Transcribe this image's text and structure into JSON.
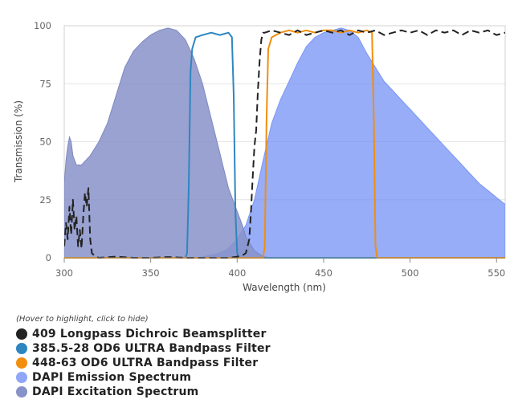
{
  "legend": {
    "hint": "(Hover to highlight, click to hide)"
  },
  "chart_data": {
    "type": "area",
    "title": "",
    "xlabel": "Wavelength (nm)",
    "ylabel": "Transmission (%)",
    "xlim": [
      300,
      555
    ],
    "ylim": [
      0,
      100
    ],
    "x_ticks": [
      300,
      350,
      400,
      450,
      500,
      550
    ],
    "y_ticks": [
      0,
      25,
      50,
      75,
      100
    ],
    "grid": "horizontal",
    "legend_position": "bottom-left",
    "series": [
      {
        "name": "409 Longpass Dichroic Beamsplitter",
        "color": "#222222",
        "style": "dashed",
        "points": [
          [
            300,
            5
          ],
          [
            301,
            15
          ],
          [
            302,
            8
          ],
          [
            303,
            22
          ],
          [
            304,
            10
          ],
          [
            305,
            25
          ],
          [
            306,
            12
          ],
          [
            307,
            18
          ],
          [
            308,
            5
          ],
          [
            309,
            12
          ],
          [
            310,
            4
          ],
          [
            311,
            18
          ],
          [
            312,
            28
          ],
          [
            313,
            22
          ],
          [
            314,
            30
          ],
          [
            315,
            8
          ],
          [
            316,
            2
          ],
          [
            318,
            0.5
          ],
          [
            320,
            0
          ],
          [
            330,
            0.5
          ],
          [
            340,
            0
          ],
          [
            350,
            0
          ],
          [
            360,
            0.3
          ],
          [
            370,
            0
          ],
          [
            380,
            0
          ],
          [
            390,
            0
          ],
          [
            395,
            0
          ],
          [
            400,
            0.5
          ],
          [
            403,
            1
          ],
          [
            405,
            2
          ],
          [
            407,
            8
          ],
          [
            408,
            20
          ],
          [
            409,
            35
          ],
          [
            410,
            48
          ],
          [
            411,
            55
          ],
          [
            412,
            72
          ],
          [
            413,
            85
          ],
          [
            414,
            94
          ],
          [
            415,
            97
          ],
          [
            416,
            97
          ],
          [
            420,
            98
          ],
          [
            425,
            97
          ],
          [
            430,
            96
          ],
          [
            435,
            98
          ],
          [
            440,
            96
          ],
          [
            445,
            97
          ],
          [
            450,
            98
          ],
          [
            455,
            97
          ],
          [
            460,
            98
          ],
          [
            465,
            96
          ],
          [
            470,
            98
          ],
          [
            475,
            97
          ],
          [
            480,
            98
          ],
          [
            485,
            96
          ],
          [
            490,
            97
          ],
          [
            495,
            98
          ],
          [
            500,
            97
          ],
          [
            505,
            98
          ],
          [
            510,
            96
          ],
          [
            515,
            98
          ],
          [
            520,
            97
          ],
          [
            525,
            98
          ],
          [
            530,
            96
          ],
          [
            535,
            98
          ],
          [
            540,
            97
          ],
          [
            545,
            98
          ],
          [
            550,
            96
          ],
          [
            555,
            97
          ]
        ]
      },
      {
        "name": "385.5-28 OD6 ULTRA Bandpass Filter",
        "color": "#2e86c1",
        "style": "solid",
        "points": [
          [
            300,
            0
          ],
          [
            370,
            0
          ],
          [
            371,
            2
          ],
          [
            372,
            30
          ],
          [
            373,
            80
          ],
          [
            374,
            90
          ],
          [
            376,
            95
          ],
          [
            380,
            96
          ],
          [
            385,
            97
          ],
          [
            390,
            96
          ],
          [
            395,
            97
          ],
          [
            397,
            95
          ],
          [
            398,
            70
          ],
          [
            399,
            20
          ],
          [
            400,
            2
          ],
          [
            401,
            0
          ],
          [
            555,
            0
          ]
        ]
      },
      {
        "name": "448-63 OD6 ULTRA Bandpass Filter",
        "color": "#f28e0c",
        "style": "solid",
        "points": [
          [
            300,
            0
          ],
          [
            415,
            0
          ],
          [
            416,
            5
          ],
          [
            417,
            60
          ],
          [
            418,
            90
          ],
          [
            420,
            95
          ],
          [
            425,
            97
          ],
          [
            430,
            98
          ],
          [
            435,
            97
          ],
          [
            440,
            98
          ],
          [
            445,
            97
          ],
          [
            450,
            98
          ],
          [
            455,
            98
          ],
          [
            460,
            97
          ],
          [
            465,
            98
          ],
          [
            470,
            97
          ],
          [
            475,
            98
          ],
          [
            478,
            97
          ],
          [
            479,
            60
          ],
          [
            480,
            5
          ],
          [
            481,
            0
          ],
          [
            555,
            0
          ]
        ]
      },
      {
        "name": "DAPI Emission Spectrum",
        "color": "#6f8ef5",
        "style": "filled",
        "points": [
          [
            370,
            0
          ],
          [
            380,
            0.3
          ],
          [
            390,
            2
          ],
          [
            395,
            4
          ],
          [
            400,
            8
          ],
          [
            405,
            14
          ],
          [
            410,
            25
          ],
          [
            415,
            42
          ],
          [
            420,
            58
          ],
          [
            425,
            68
          ],
          [
            430,
            76
          ],
          [
            435,
            84
          ],
          [
            440,
            91
          ],
          [
            445,
            95
          ],
          [
            450,
            97
          ],
          [
            455,
            98
          ],
          [
            460,
            99
          ],
          [
            465,
            98
          ],
          [
            470,
            95
          ],
          [
            475,
            88
          ],
          [
            480,
            82
          ],
          [
            485,
            76
          ],
          [
            490,
            72
          ],
          [
            495,
            68
          ],
          [
            500,
            64
          ],
          [
            505,
            60
          ],
          [
            510,
            56
          ],
          [
            515,
            52
          ],
          [
            520,
            48
          ],
          [
            525,
            44
          ],
          [
            530,
            40
          ],
          [
            535,
            36
          ],
          [
            540,
            32
          ],
          [
            545,
            29
          ],
          [
            550,
            26
          ],
          [
            555,
            23
          ]
        ]
      },
      {
        "name": "DAPI Excitation Spectrum",
        "color": "#8792c8",
        "style": "filled",
        "points": [
          [
            300,
            32
          ],
          [
            301,
            42
          ],
          [
            302,
            48
          ],
          [
            303,
            52
          ],
          [
            304,
            50
          ],
          [
            305,
            44
          ],
          [
            307,
            40
          ],
          [
            310,
            40
          ],
          [
            315,
            44
          ],
          [
            320,
            50
          ],
          [
            325,
            58
          ],
          [
            330,
            70
          ],
          [
            335,
            82
          ],
          [
            340,
            89
          ],
          [
            345,
            93
          ],
          [
            350,
            96
          ],
          [
            355,
            98
          ],
          [
            360,
            99
          ],
          [
            365,
            98
          ],
          [
            370,
            94
          ],
          [
            375,
            86
          ],
          [
            380,
            75
          ],
          [
            385,
            60
          ],
          [
            390,
            45
          ],
          [
            395,
            30
          ],
          [
            400,
            20
          ],
          [
            403,
            14
          ],
          [
            405,
            9
          ],
          [
            410,
            3
          ],
          [
            415,
            0.5
          ],
          [
            420,
            0
          ]
        ]
      }
    ]
  }
}
